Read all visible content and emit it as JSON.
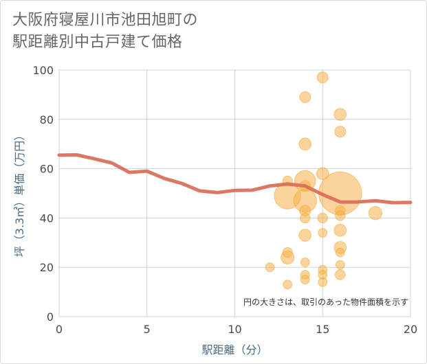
{
  "title": {
    "line1": "大阪府寝屋川市池田旭町の",
    "line2": "駅距離別中古戸建て価格"
  },
  "colors": {
    "bubble": "#f5b04a",
    "line": "#d9705a",
    "grid": "#c9d6e3",
    "plot_bg": "#ffffff"
  },
  "chart_data": {
    "type": "scatter",
    "xlabel": "駅距離（分）",
    "ylabel": "坪（3.3㎡）単価（万円）",
    "xlim": [
      0,
      20
    ],
    "ylim": [
      0,
      100
    ],
    "xticks": [
      "0",
      "5",
      "10",
      "15",
      "20"
    ],
    "yticks": [
      "0",
      "20",
      "40",
      "60",
      "80",
      "100"
    ],
    "annotation": "円の大きさは、取引のあった物件面積を示す",
    "trend_line": {
      "x": [
        0,
        1,
        2,
        3,
        4,
        5,
        6,
        7,
        8,
        9,
        10,
        11,
        12,
        13,
        14,
        15,
        16,
        17,
        18,
        19,
        20
      ],
      "y": [
        65.5,
        65.6,
        64,
        62.3,
        58.5,
        59,
        56,
        54,
        51,
        50.3,
        51.2,
        51.3,
        53,
        53.8,
        53,
        49.5,
        46.5,
        46.5,
        47,
        46.2,
        46.3
      ]
    },
    "bubbles": [
      {
        "x": 15,
        "y": 97,
        "size": 1
      },
      {
        "x": 14,
        "y": 89,
        "size": 1
      },
      {
        "x": 16,
        "y": 82,
        "size": 1.1
      },
      {
        "x": 16,
        "y": 75,
        "size": 1
      },
      {
        "x": 14,
        "y": 70,
        "size": 1.1
      },
      {
        "x": 15,
        "y": 58,
        "size": 1.1
      },
      {
        "x": 13,
        "y": 55,
        "size": 0.9
      },
      {
        "x": 14,
        "y": 55,
        "size": 1.9
      },
      {
        "x": 14,
        "y": 53,
        "size": 1
      },
      {
        "x": 13,
        "y": 49,
        "size": 2.4
      },
      {
        "x": 14,
        "y": 47,
        "size": 2.1
      },
      {
        "x": 16,
        "y": 50,
        "size": 3.9
      },
      {
        "x": 14,
        "y": 43,
        "size": 1
      },
      {
        "x": 16,
        "y": 43,
        "size": 0.9
      },
      {
        "x": 18,
        "y": 42,
        "size": 1.2
      },
      {
        "x": 14,
        "y": 40,
        "size": 0.9
      },
      {
        "x": 15,
        "y": 40,
        "size": 0.9
      },
      {
        "x": 16,
        "y": 41,
        "size": 0.9
      },
      {
        "x": 16,
        "y": 35,
        "size": 1.1
      },
      {
        "x": 15,
        "y": 34,
        "size": 0.8
      },
      {
        "x": 14,
        "y": 33,
        "size": 1.1
      },
      {
        "x": 16,
        "y": 28,
        "size": 1.1
      },
      {
        "x": 16,
        "y": 26,
        "size": 0.8
      },
      {
        "x": 13,
        "y": 26,
        "size": 0.9
      },
      {
        "x": 13,
        "y": 24,
        "size": 1.2
      },
      {
        "x": 14,
        "y": 22,
        "size": 0.8
      },
      {
        "x": 16,
        "y": 21,
        "size": 0.8
      },
      {
        "x": 12,
        "y": 20,
        "size": 0.8
      },
      {
        "x": 15,
        "y": 19,
        "size": 0.8
      },
      {
        "x": 14,
        "y": 17,
        "size": 0.8
      },
      {
        "x": 16,
        "y": 17,
        "size": 0.9
      },
      {
        "x": 15,
        "y": 17,
        "size": 0.8
      },
      {
        "x": 14,
        "y": 15,
        "size": 0.8
      },
      {
        "x": 15,
        "y": 14,
        "size": 0.8
      },
      {
        "x": 13,
        "y": 13,
        "size": 0.8
      }
    ]
  }
}
